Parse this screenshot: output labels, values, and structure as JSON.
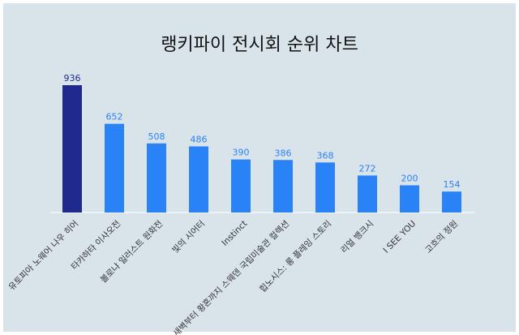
{
  "chart_data": {
    "type": "bar",
    "title": "랭키파이 전시회 순위 차트",
    "categories": [
      "유토피아 노웨어 나우 히어",
      "타카하타 이사오전",
      "볼로냐 일러스트 원화전",
      "빛의 시어터",
      "Instinct",
      "새벽부터 황혼까지 스웨덴 국립미술관 컬렉션",
      "힙노시스: 롱 플레잉 스토리",
      "리얼 뱅크시",
      "I SEE YOU",
      "고흐의 정원"
    ],
    "values": [
      936,
      652,
      508,
      486,
      390,
      386,
      368,
      272,
      200,
      154
    ],
    "colors": [
      "#1f2a8f",
      "#2a83f6",
      "#2a83f6",
      "#2a83f6",
      "#2a83f6",
      "#2a83f6",
      "#2a83f6",
      "#2a83f6",
      "#2a83f6",
      "#2a83f6"
    ]
  }
}
